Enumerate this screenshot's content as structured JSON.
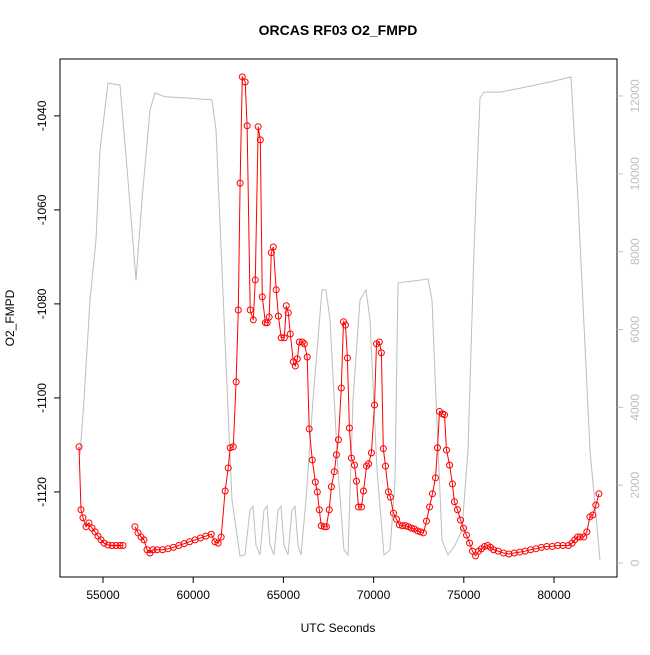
{
  "chart_data": {
    "type": "line",
    "title": "ORCAS RF03 O2_FMPD",
    "x_label": "UTC Seconds",
    "y_label": "O2_FMPD",
    "xlim": [
      52616,
      83492
    ],
    "xticks": [
      55000,
      60000,
      65000,
      70000,
      75000,
      80000
    ],
    "ylim": [
      -1138.1,
      -1027.9
    ],
    "yticks": [
      -1120,
      -1100,
      -1080,
      -1060,
      -1040
    ],
    "y2lim": [
      -360,
      12950
    ],
    "y2ticks": [
      0,
      2000,
      4000,
      6000,
      8000,
      10000,
      12000
    ],
    "series": [
      {
        "color": "#ff0000",
        "markers": true,
        "x": [
          53670,
          53780,
          53890,
          54060,
          54220,
          54390,
          54560,
          54720,
          54890,
          55060,
          55280,
          55500,
          55720,
          55940,
          56110,
          56400,
          56770,
          56940,
          57110,
          57270,
          57440,
          57600,
          57770,
          58000,
          58300,
          58600,
          58900,
          59200,
          59500,
          59800,
          60100,
          60400,
          60700,
          61000,
          61200,
          61380,
          61550,
          61770,
          61940,
          62050,
          62220,
          62380,
          62500,
          62600,
          62720,
          62880,
          62990,
          63160,
          63330,
          63440,
          63600,
          63720,
          63830,
          64000,
          64100,
          64210,
          64330,
          64440,
          64600,
          64720,
          64880,
          65050,
          65160,
          65270,
          65380,
          65550,
          65660,
          65770,
          65880,
          66050,
          66160,
          66320,
          66430,
          66600,
          66770,
          66880,
          66990,
          67100,
          67270,
          67380,
          67540,
          67660,
          67820,
          67940,
          68050,
          68210,
          68330,
          68440,
          68550,
          68660,
          68770,
          68940,
          69050,
          69160,
          69330,
          69440,
          69610,
          69720,
          69880,
          70050,
          70160,
          70320,
          70430,
          70540,
          70660,
          70820,
          70930,
          71100,
          71270,
          71430,
          71600,
          71770,
          71930,
          72100,
          72260,
          72430,
          72600,
          72760,
          72930,
          73100,
          73260,
          73430,
          73540,
          73650,
          73820,
          73930,
          74040,
          74210,
          74370,
          74480,
          74650,
          74820,
          74980,
          75150,
          75320,
          75480,
          75650,
          75820,
          75980,
          76150,
          76320,
          76480,
          76650,
          76900,
          77200,
          77500,
          77800,
          78100,
          78400,
          78700,
          79000,
          79300,
          79600,
          79900,
          80200,
          80500,
          80800,
          81000,
          81150,
          81300,
          81450,
          81650,
          81820,
          81990,
          82150,
          82320,
          82490
        ],
        "values": [
          -1110.4,
          -1123.8,
          -1125.5,
          -1127.4,
          -1126.6,
          -1127.7,
          -1128.5,
          -1129.4,
          -1130.2,
          -1130.9,
          -1131.3,
          -1131.4,
          -1131.4,
          -1131.4,
          -1131.4,
          null,
          -1127.4,
          -1128.7,
          -1129.6,
          -1130.2,
          -1132.3,
          -1133.0,
          -1132.3,
          -1132.3,
          -1132.3,
          -1132.1,
          -1131.8,
          -1131.4,
          -1131.0,
          -1130.6,
          -1130.2,
          -1129.8,
          -1129.4,
          -1129.0,
          -1130.6,
          -1130.9,
          -1129.6,
          -1119.8,
          -1114.9,
          -1110.6,
          -1110.4,
          -1096.6,
          -1081.3,
          -1054.3,
          -1031.7,
          -1032.8,
          -1042.1,
          -1081.3,
          -1083.4,
          -1074.9,
          -1042.3,
          -1045.1,
          -1078.5,
          -1084.0,
          -1084.0,
          -1082.8,
          -1069.1,
          -1067.9,
          -1077.0,
          -1082.6,
          -1087.2,
          -1087.2,
          -1080.4,
          -1081.9,
          -1086.4,
          -1092.3,
          -1093.2,
          -1091.7,
          -1088.1,
          -1088.1,
          -1088.5,
          -1091.3,
          -1106.6,
          -1113.2,
          -1117.9,
          -1120.0,
          -1123.8,
          -1127.2,
          -1127.4,
          -1127.4,
          -1123.8,
          -1118.9,
          -1115.7,
          -1112.1,
          -1108.9,
          -1097.9,
          -1083.8,
          -1084.5,
          -1091.5,
          -1106.4,
          -1112.8,
          -1114.3,
          -1117.7,
          -1123.2,
          -1123.2,
          -1119.8,
          -1114.5,
          -1114.0,
          -1111.7,
          -1101.5,
          -1088.5,
          -1088.1,
          -1090.4,
          -1110.8,
          -1114.5,
          -1120.0,
          -1121.1,
          -1124.5,
          -1125.8,
          -1127.0,
          -1127.2,
          -1127.2,
          -1127.4,
          -1127.7,
          -1127.9,
          -1128.3,
          -1128.5,
          -1128.7,
          -1126.2,
          -1123.2,
          -1120.4,
          -1117.0,
          -1110.6,
          -1102.9,
          -1103.4,
          -1103.6,
          -1111.1,
          -1114.3,
          -1118.3,
          -1122.1,
          -1123.8,
          -1126.0,
          -1127.7,
          -1129.2,
          -1130.9,
          -1132.6,
          -1133.6,
          -1132.6,
          -1132.1,
          -1131.6,
          -1131.4,
          -1131.8,
          -1132.3,
          -1132.6,
          -1133.0,
          -1133.2,
          -1133.0,
          -1132.8,
          -1132.6,
          -1132.3,
          -1132.1,
          -1131.8,
          -1131.6,
          -1131.6,
          -1131.4,
          -1131.4,
          -1131.4,
          -1130.9,
          -1130.2,
          -1129.6,
          -1129.6,
          -1129.6,
          -1128.5,
          -1125.3,
          -1124.9,
          -1122.8,
          -1120.4
        ]
      },
      {
        "color": "#bebebe",
        "axis": "y2",
        "markers": false,
        "x": [
          53725,
          53946,
          54279,
          54611,
          54833,
          55277,
          55942,
          56385,
          56829,
          57161,
          57605,
          57882,
          58436,
          59545,
          61041,
          61263,
          61762,
          62150,
          62593,
          62870,
          63148,
          63314,
          63480,
          63702,
          63924,
          64090,
          64256,
          64478,
          64700,
          64866,
          65032,
          65254,
          65476,
          65642,
          65808,
          65974,
          66251,
          66639,
          67138,
          67360,
          67582,
          68025,
          68358,
          68580,
          68857,
          69245,
          69578,
          69799,
          70187,
          70575,
          70908,
          71185,
          71351,
          72571,
          73014,
          73236,
          73458,
          73790,
          74123,
          74511,
          74899,
          75232,
          75564,
          75897,
          76119,
          77005,
          78114,
          79777,
          80941,
          81329,
          81994,
          82548
        ],
        "values": [
          2775,
          4190,
          6760,
          8300,
          10610,
          12330,
          12280,
          9840,
          7270,
          9330,
          11640,
          12080,
          11980,
          11950,
          11900,
          11130,
          5730,
          1620,
          180,
          205,
          1360,
          1460,
          460,
          205,
          1360,
          1460,
          460,
          205,
          1360,
          1460,
          460,
          205,
          1360,
          1460,
          460,
          205,
          1620,
          4190,
          7020,
          7020,
          6250,
          2390,
          330,
          205,
          4190,
          6760,
          7020,
          6250,
          2390,
          205,
          330,
          2130,
          7200,
          7270,
          7300,
          6760,
          4190,
          590,
          205,
          460,
          850,
          2900,
          8040,
          11950,
          12100,
          12100,
          12200,
          12360,
          12490,
          9330,
          2900,
          80
        ]
      }
    ]
  }
}
